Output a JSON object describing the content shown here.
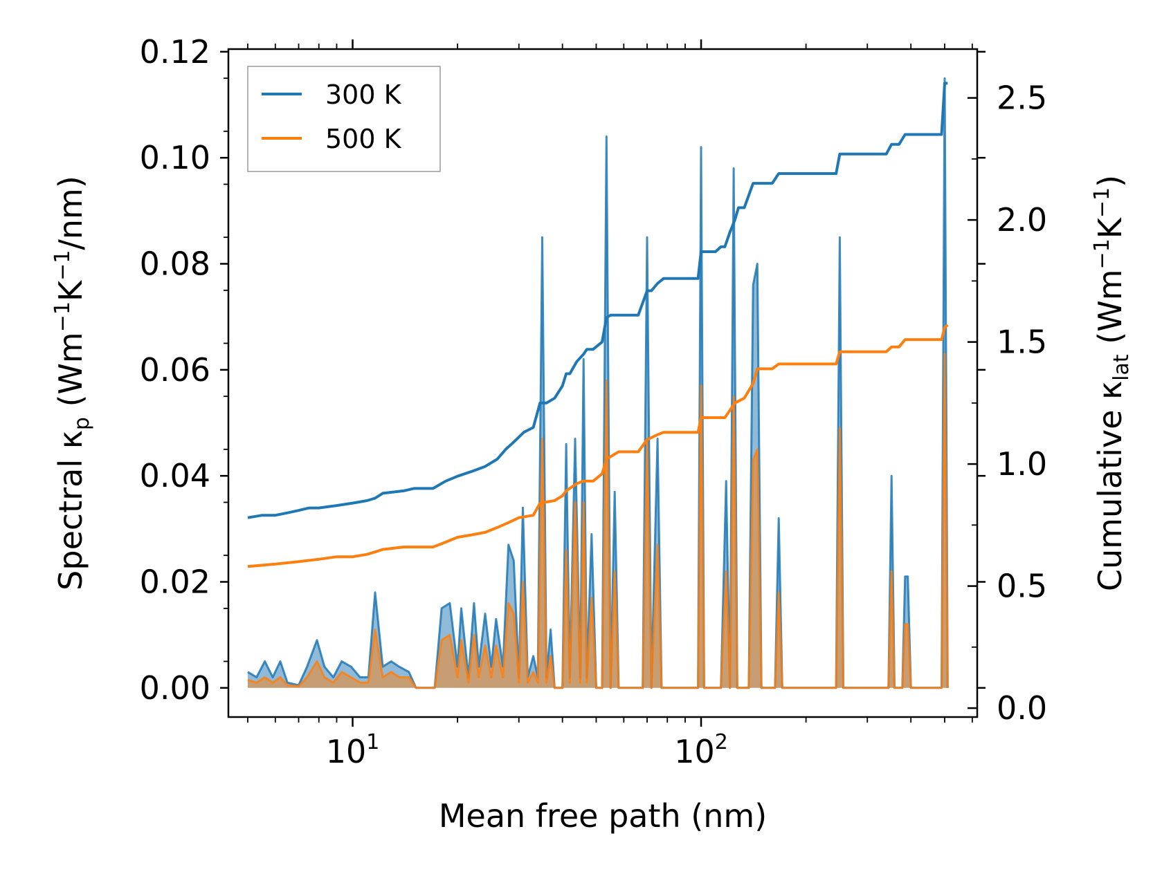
{
  "chart_data": {
    "type": "line",
    "xlabel": "Mean free path (nm)",
    "ylabel_left": {
      "main": "Spectral κ",
      "sub": "p",
      "units_pre": " (Wm",
      "sup1": "−1",
      "mid": "K",
      "sup2": "−1",
      "units_post": "/nm)"
    },
    "ylabel_right": {
      "main": "Cumulative κ",
      "sub": "lat",
      "units_pre": " (Wm",
      "sup1": "−1",
      "mid": "K",
      "sup2": "−1",
      "units_post": ")"
    },
    "xscale": "log",
    "xlim": [
      4.4,
      620
    ],
    "ylim_left": [
      -0.0055,
      0.1205
    ],
    "ylim_right": [
      -0.0366,
      2.7
    ],
    "x_major_ticks": [
      {
        "value": 10,
        "base": "10",
        "exp": "1"
      },
      {
        "value": 100,
        "base": "10",
        "exp": "2"
      }
    ],
    "yticks_left": [
      "0.00",
      "0.02",
      "0.04",
      "0.06",
      "0.08",
      "0.10",
      "0.12"
    ],
    "yticks_left_values": [
      0,
      0.02,
      0.04,
      0.06,
      0.08,
      0.1,
      0.12
    ],
    "yticks_right": [
      "0.0",
      "0.5",
      "1.0",
      "1.5",
      "2.0",
      "2.5"
    ],
    "yticks_right_values": [
      0,
      0.5,
      1.0,
      1.5,
      2.0,
      2.5
    ],
    "legend": {
      "position": "top-left",
      "entries": [
        {
          "label": "300 K",
          "color": "#1f77b4"
        },
        {
          "label": "500 K",
          "color": "#ff7f0e"
        }
      ]
    },
    "series": [
      {
        "name": "300 K",
        "color": "#1f77b4",
        "spectral": [
          [
            5,
            0.003
          ],
          [
            5.3,
            0.002
          ],
          [
            5.6,
            0.005
          ],
          [
            5.9,
            0.002
          ],
          [
            6.2,
            0.005
          ],
          [
            6.5,
            0.001
          ],
          [
            7,
            0.0005
          ],
          [
            7.4,
            0.004
          ],
          [
            7.9,
            0.009
          ],
          [
            8.3,
            0.004
          ],
          [
            8.8,
            0.002
          ],
          [
            9.3,
            0.005
          ],
          [
            9.9,
            0.004
          ],
          [
            10.5,
            0.002
          ],
          [
            11.1,
            0.002
          ],
          [
            11.6,
            0.018
          ],
          [
            12.2,
            0.004
          ],
          [
            12.9,
            0.005
          ],
          [
            13.6,
            0.004
          ],
          [
            14.5,
            0.003
          ],
          [
            15.2,
            0.0
          ],
          [
            17.2,
            0.0
          ],
          [
            18,
            0.015
          ],
          [
            19,
            0.016
          ],
          [
            20,
            0.004
          ],
          [
            20.5,
            0.015
          ],
          [
            21.5,
            0.002
          ],
          [
            22.3,
            0.016
          ],
          [
            23,
            0.004
          ],
          [
            24,
            0.014
          ],
          [
            25,
            0.004
          ],
          [
            25.8,
            0.013
          ],
          [
            27,
            0.004
          ],
          [
            28,
            0.027
          ],
          [
            29,
            0.024
          ],
          [
            30,
            0.002
          ],
          [
            30.8,
            0.034
          ],
          [
            31.8,
            0.002
          ],
          [
            33,
            0.006
          ],
          [
            34,
            0.002
          ],
          [
            35,
            0.085
          ],
          [
            36,
            0.002
          ],
          [
            37,
            0.011
          ],
          [
            38,
            0.0
          ],
          [
            40,
            0.0
          ],
          [
            41,
            0.046
          ],
          [
            42,
            0.002
          ],
          [
            43.5,
            0.047
          ],
          [
            45,
            0.002
          ],
          [
            46,
            0.062
          ],
          [
            47,
            0.002
          ],
          [
            48.5,
            0.029
          ],
          [
            50,
            0.0
          ],
          [
            52,
            0.0
          ],
          [
            53.5,
            0.104
          ],
          [
            55,
            0.0
          ],
          [
            56.5,
            0.037
          ],
          [
            58,
            0.0
          ],
          [
            68,
            0.0
          ],
          [
            70,
            0.085
          ],
          [
            72,
            0.0
          ],
          [
            75,
            0.047
          ],
          [
            77,
            0.0
          ],
          [
            98,
            0.0
          ],
          [
            100,
            0.102
          ],
          [
            102,
            0.0
          ],
          [
            114,
            0.0
          ],
          [
            118,
            0.039
          ],
          [
            121,
            0.0
          ],
          [
            124,
            0.098
          ],
          [
            127,
            0.0
          ],
          [
            137,
            0.0
          ],
          [
            141,
            0.076
          ],
          [
            145,
            0.08
          ],
          [
            149,
            0.0
          ],
          [
            163,
            0.0
          ],
          [
            167,
            0.032
          ],
          [
            171,
            0.0
          ],
          [
            244,
            0.0
          ],
          [
            250,
            0.085
          ],
          [
            256,
            0.0
          ],
          [
            345,
            0.0
          ],
          [
            352,
            0.04
          ],
          [
            359,
            0.0
          ],
          [
            378,
            0.0
          ],
          [
            385,
            0.021
          ],
          [
            392,
            0.021
          ],
          [
            400,
            0.0
          ],
          [
            470,
            0.0
          ],
          [
            490,
            0.0
          ],
          [
            500,
            0.115
          ],
          [
            510,
            0.0
          ]
        ],
        "cumulative": [
          [
            5,
            0.78
          ],
          [
            5.5,
            0.79
          ],
          [
            6,
            0.79
          ],
          [
            6.5,
            0.8
          ],
          [
            7,
            0.81
          ],
          [
            7.5,
            0.82
          ],
          [
            8,
            0.82
          ],
          [
            9,
            0.83
          ],
          [
            10,
            0.84
          ],
          [
            11,
            0.85
          ],
          [
            11.6,
            0.86
          ],
          [
            12.2,
            0.88
          ],
          [
            14,
            0.89
          ],
          [
            15,
            0.9
          ],
          [
            17,
            0.9
          ],
          [
            18.5,
            0.93
          ],
          [
            20,
            0.95
          ],
          [
            22,
            0.97
          ],
          [
            24,
            0.99
          ],
          [
            26,
            1.02
          ],
          [
            27.5,
            1.06
          ],
          [
            29,
            1.09
          ],
          [
            31,
            1.13
          ],
          [
            33,
            1.15
          ],
          [
            34.5,
            1.25
          ],
          [
            36,
            1.25
          ],
          [
            38,
            1.27
          ],
          [
            40,
            1.32
          ],
          [
            41,
            1.37
          ],
          [
            42,
            1.37
          ],
          [
            44,
            1.42
          ],
          [
            46,
            1.45
          ],
          [
            47,
            1.47
          ],
          [
            49,
            1.47
          ],
          [
            52,
            1.5
          ],
          [
            53.5,
            1.6
          ],
          [
            55,
            1.61
          ],
          [
            58,
            1.61
          ],
          [
            66,
            1.61
          ],
          [
            70,
            1.71
          ],
          [
            72,
            1.71
          ],
          [
            75,
            1.74
          ],
          [
            78,
            1.76
          ],
          [
            98,
            1.76
          ],
          [
            100,
            1.87
          ],
          [
            110,
            1.87
          ],
          [
            114,
            1.89
          ],
          [
            117,
            1.89
          ],
          [
            121,
            1.95
          ],
          [
            125,
            2.0
          ],
          [
            128,
            2.05
          ],
          [
            133,
            2.05
          ],
          [
            141,
            2.15
          ],
          [
            149,
            2.15
          ],
          [
            160,
            2.15
          ],
          [
            167,
            2.19
          ],
          [
            244,
            2.19
          ],
          [
            250,
            2.27
          ],
          [
            340,
            2.27
          ],
          [
            352,
            2.31
          ],
          [
            370,
            2.31
          ],
          [
            385,
            2.35
          ],
          [
            400,
            2.35
          ],
          [
            490,
            2.35
          ],
          [
            500,
            2.56
          ],
          [
            510,
            2.56
          ]
        ]
      },
      {
        "name": "500 K",
        "color": "#ff7f0e",
        "spectral": [
          [
            5,
            0.0015
          ],
          [
            5.3,
            0.001
          ],
          [
            5.6,
            0.002
          ],
          [
            5.9,
            0.001
          ],
          [
            6.2,
            0.002
          ],
          [
            6.5,
            0.0005
          ],
          [
            7,
            0.0003
          ],
          [
            7.4,
            0.002
          ],
          [
            7.9,
            0.005
          ],
          [
            8.3,
            0.002
          ],
          [
            8.8,
            0.001
          ],
          [
            9.3,
            0.003
          ],
          [
            9.9,
            0.002
          ],
          [
            10.5,
            0.001
          ],
          [
            11.1,
            0.001
          ],
          [
            11.6,
            0.011
          ],
          [
            12.2,
            0.002
          ],
          [
            12.9,
            0.003
          ],
          [
            13.6,
            0.002
          ],
          [
            14.5,
            0.002
          ],
          [
            15.2,
            0.0
          ],
          [
            17.2,
            0.0
          ],
          [
            18,
            0.009
          ],
          [
            19,
            0.01
          ],
          [
            20,
            0.002
          ],
          [
            20.5,
            0.009
          ],
          [
            21.5,
            0.001
          ],
          [
            22.3,
            0.01
          ],
          [
            23,
            0.002
          ],
          [
            24,
            0.008
          ],
          [
            25,
            0.002
          ],
          [
            25.8,
            0.008
          ],
          [
            27,
            0.002
          ],
          [
            28,
            0.016
          ],
          [
            29,
            0.014
          ],
          [
            30,
            0.001
          ],
          [
            30.8,
            0.02
          ],
          [
            31.8,
            0.001
          ],
          [
            33,
            0.003
          ],
          [
            34,
            0.001
          ],
          [
            35,
            0.047
          ],
          [
            36,
            0.001
          ],
          [
            37,
            0.006
          ],
          [
            38,
            0.0
          ],
          [
            40,
            0.0
          ],
          [
            41,
            0.026
          ],
          [
            42,
            0.001
          ],
          [
            43.5,
            0.035
          ],
          [
            45,
            0.001
          ],
          [
            46,
            0.035
          ],
          [
            47,
            0.001
          ],
          [
            48.5,
            0.017
          ],
          [
            50,
            0.0
          ],
          [
            52,
            0.0
          ],
          [
            53.5,
            0.058
          ],
          [
            55,
            0.0
          ],
          [
            56.5,
            0.022
          ],
          [
            58,
            0.0
          ],
          [
            68,
            0.0
          ],
          [
            70,
            0.047
          ],
          [
            72,
            0.0
          ],
          [
            75,
            0.027
          ],
          [
            77,
            0.0
          ],
          [
            98,
            0.0
          ],
          [
            100,
            0.057
          ],
          [
            102,
            0.0
          ],
          [
            114,
            0.0
          ],
          [
            118,
            0.022
          ],
          [
            121,
            0.0
          ],
          [
            124,
            0.055
          ],
          [
            127,
            0.0
          ],
          [
            137,
            0.0
          ],
          [
            141,
            0.043
          ],
          [
            145,
            0.045
          ],
          [
            149,
            0.0
          ],
          [
            163,
            0.0
          ],
          [
            167,
            0.018
          ],
          [
            171,
            0.0
          ],
          [
            244,
            0.0
          ],
          [
            250,
            0.049
          ],
          [
            256,
            0.0
          ],
          [
            345,
            0.0
          ],
          [
            352,
            0.022
          ],
          [
            359,
            0.0
          ],
          [
            378,
            0.0
          ],
          [
            385,
            0.012
          ],
          [
            392,
            0.012
          ],
          [
            400,
            0.0
          ],
          [
            470,
            0.0
          ],
          [
            490,
            0.0
          ],
          [
            500,
            0.063
          ],
          [
            510,
            0.0
          ]
        ],
        "cumulative": [
          [
            5,
            0.58
          ],
          [
            6,
            0.59
          ],
          [
            7,
            0.6
          ],
          [
            8,
            0.61
          ],
          [
            9,
            0.62
          ],
          [
            10,
            0.62
          ],
          [
            11,
            0.63
          ],
          [
            11.6,
            0.64
          ],
          [
            12.2,
            0.65
          ],
          [
            14,
            0.66
          ],
          [
            17,
            0.66
          ],
          [
            18.5,
            0.68
          ],
          [
            20,
            0.7
          ],
          [
            22,
            0.71
          ],
          [
            24,
            0.72
          ],
          [
            26,
            0.74
          ],
          [
            28,
            0.76
          ],
          [
            30,
            0.78
          ],
          [
            33,
            0.79
          ],
          [
            34.5,
            0.84
          ],
          [
            38,
            0.85
          ],
          [
            40,
            0.87
          ],
          [
            41,
            0.89
          ],
          [
            44,
            0.92
          ],
          [
            46,
            0.93
          ],
          [
            49,
            0.93
          ],
          [
            52,
            0.96
          ],
          [
            53.5,
            1.02
          ],
          [
            58,
            1.05
          ],
          [
            66,
            1.05
          ],
          [
            70,
            1.1
          ],
          [
            75,
            1.12
          ],
          [
            78,
            1.13
          ],
          [
            98,
            1.13
          ],
          [
            100,
            1.19
          ],
          [
            117,
            1.19
          ],
          [
            121,
            1.22
          ],
          [
            125,
            1.25
          ],
          [
            133,
            1.27
          ],
          [
            141,
            1.33
          ],
          [
            145,
            1.39
          ],
          [
            160,
            1.39
          ],
          [
            167,
            1.41
          ],
          [
            244,
            1.41
          ],
          [
            250,
            1.46
          ],
          [
            340,
            1.46
          ],
          [
            352,
            1.48
          ],
          [
            370,
            1.48
          ],
          [
            385,
            1.51
          ],
          [
            490,
            1.51
          ],
          [
            500,
            1.56
          ],
          [
            510,
            1.57
          ]
        ]
      }
    ]
  }
}
